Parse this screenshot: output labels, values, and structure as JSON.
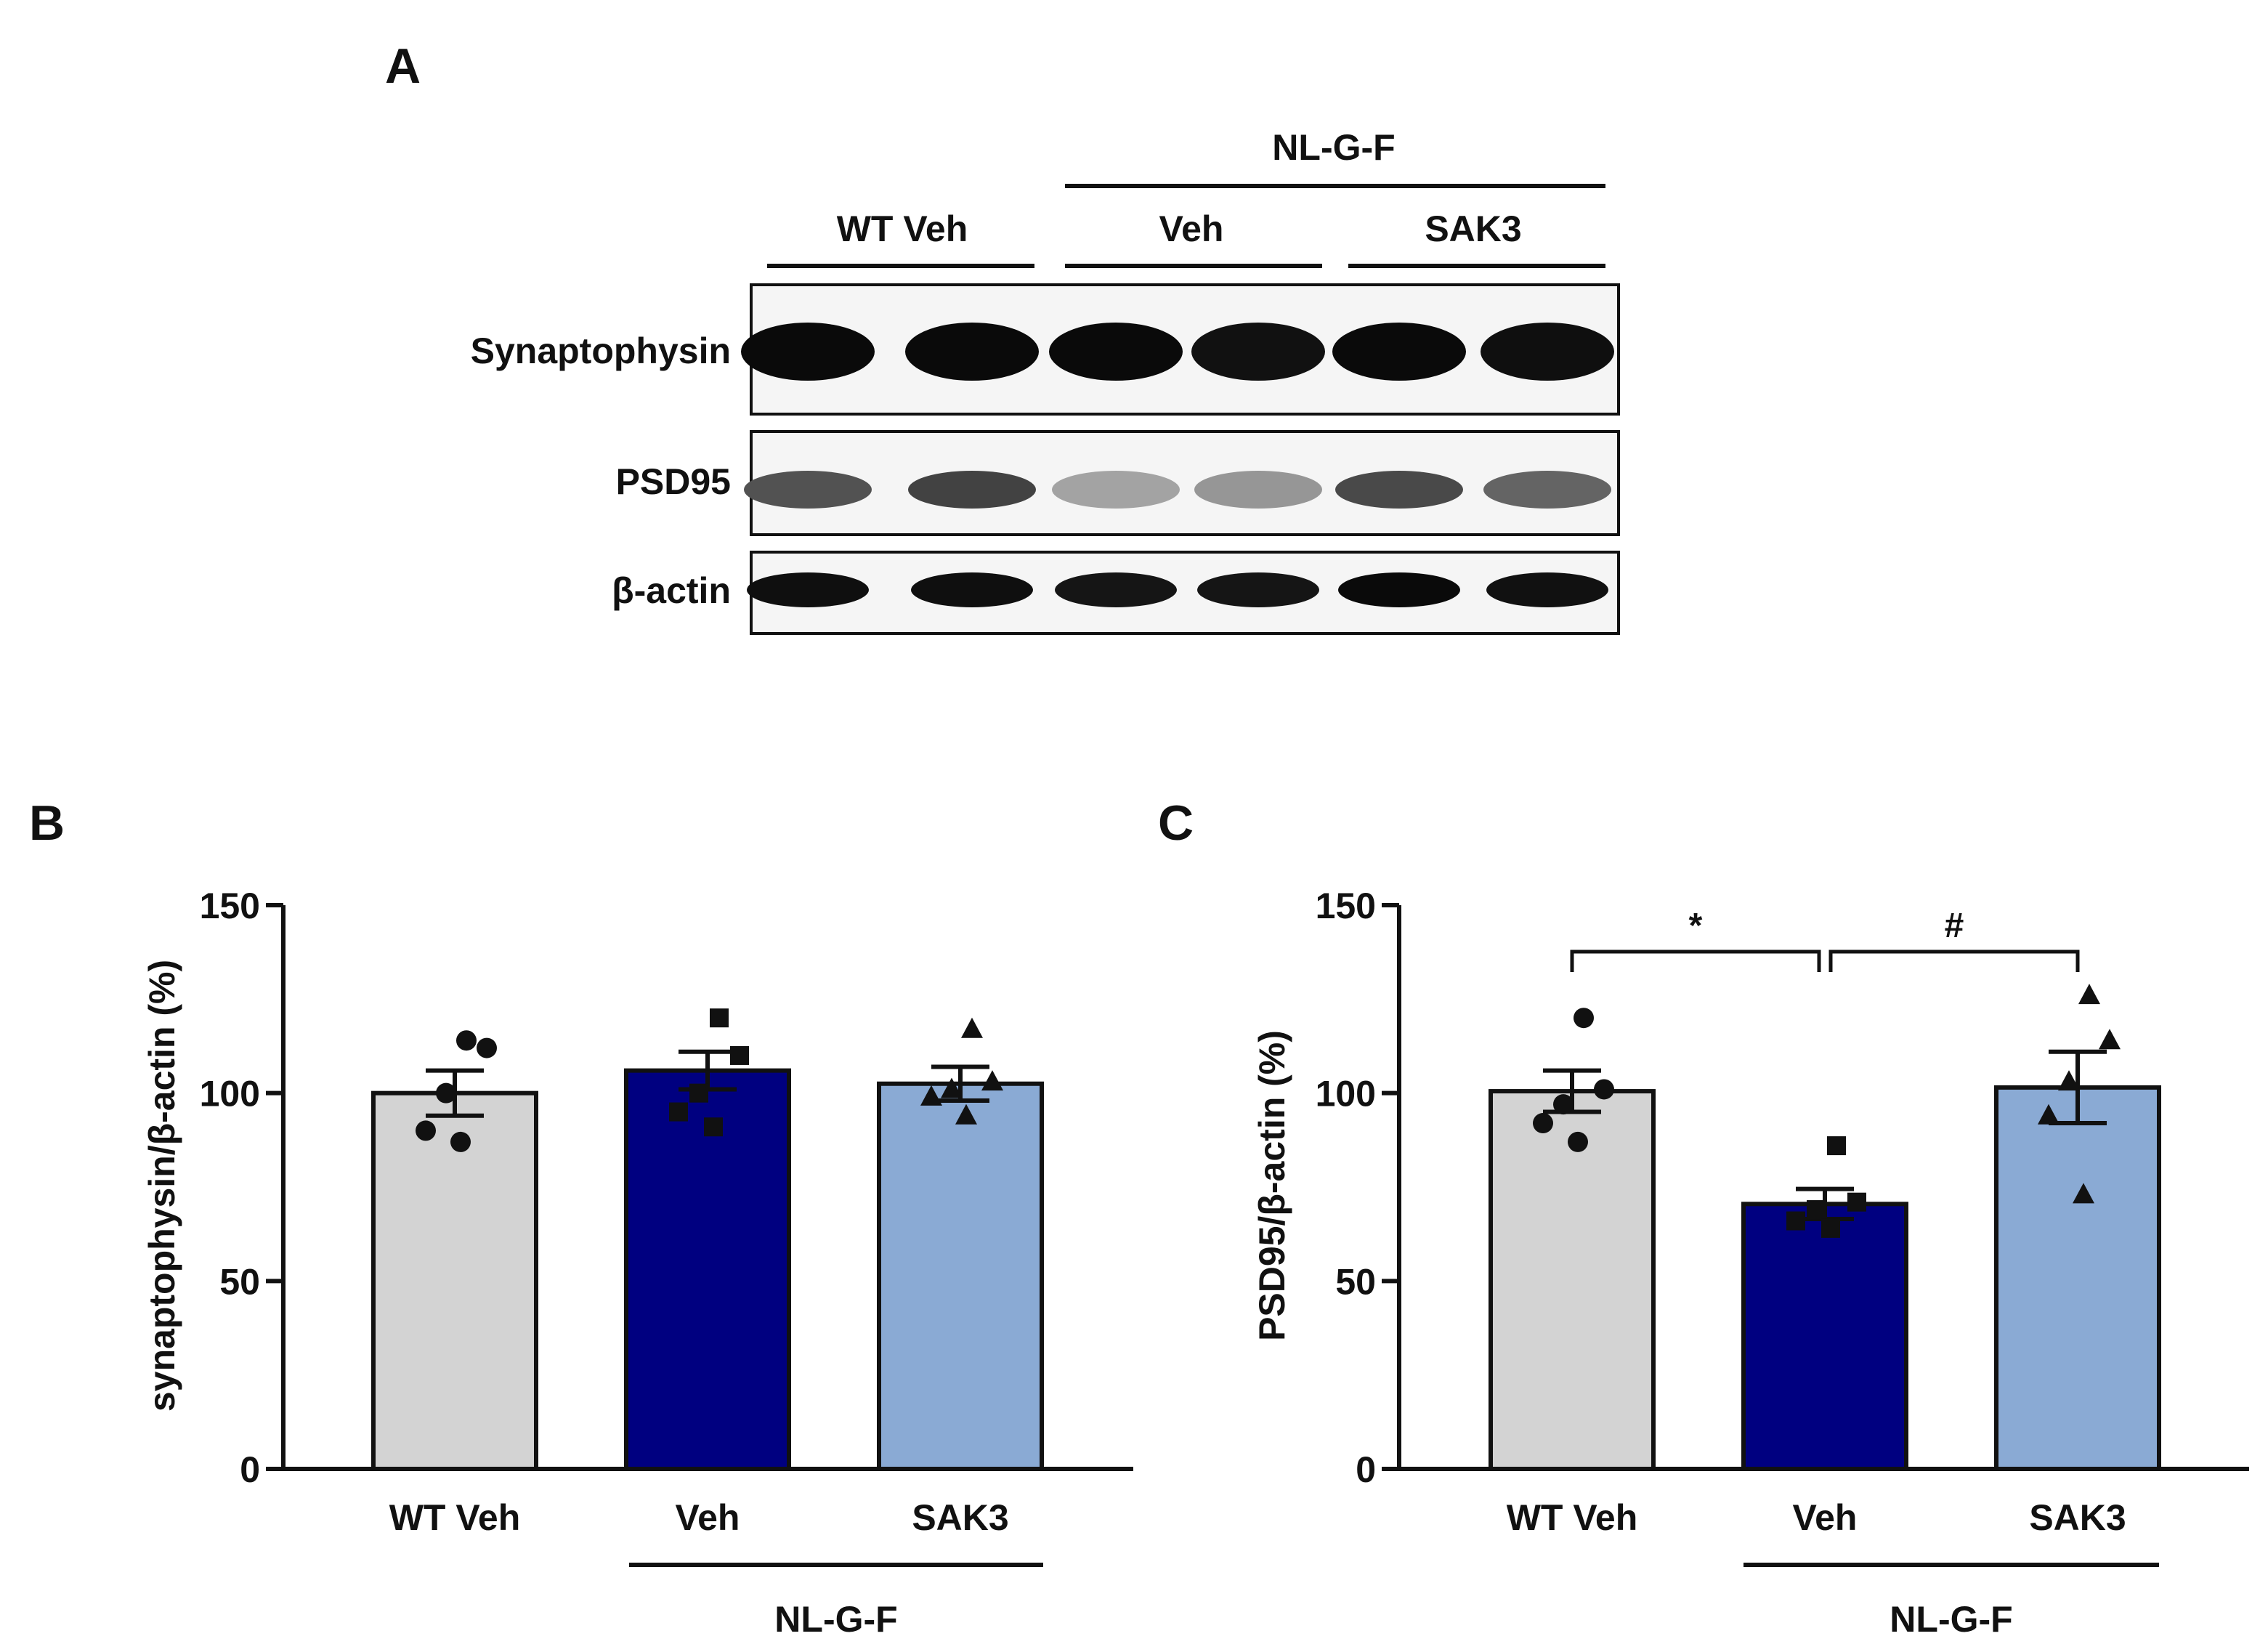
{
  "panel_a": {
    "label": "A",
    "group_top": "NL-G-F",
    "groups": [
      "WT Veh",
      "Veh",
      "SAK3"
    ],
    "blots": [
      {
        "label": "Synaptophysin",
        "intensities": [
          1.0,
          1.0,
          1.0,
          0.97,
          1.0,
          0.98
        ]
      },
      {
        "label": "PSD95",
        "intensities": [
          0.68,
          0.75,
          0.32,
          0.38,
          0.72,
          0.6
        ]
      },
      {
        "label": "β-actin",
        "intensities": [
          0.98,
          0.98,
          0.95,
          0.95,
          1.0,
          0.97
        ]
      }
    ]
  },
  "colors": {
    "wt_veh": "#d3d3d3",
    "veh": "#000080",
    "sak3": "#8aaad4",
    "ink": "#111111"
  },
  "chart_data": [
    {
      "type": "bar",
      "panel": "B",
      "categories": [
        "WT Veh",
        "Veh",
        "SAK3"
      ],
      "group_label": "NL-G-F",
      "values": [
        100,
        106,
        102.5
      ],
      "errors": [
        6,
        5,
        4.5
      ],
      "points": [
        [
          114,
          112,
          100,
          90,
          87
        ],
        [
          120,
          110,
          100,
          95,
          91
        ],
        [
          117,
          103,
          101,
          99,
          94
        ]
      ],
      "markers": [
        "circle",
        "square",
        "triangle"
      ],
      "xlabel": "",
      "ylabel": "synaptophysin/β-actin (%)",
      "ylim": [
        0,
        150
      ],
      "yticks": [
        0,
        50,
        100,
        150
      ],
      "significance": []
    },
    {
      "type": "bar",
      "panel": "C",
      "categories": [
        "WT Veh",
        "Veh",
        "SAK3"
      ],
      "group_label": "NL-G-F",
      "values": [
        100.5,
        70.5,
        101.5
      ],
      "errors": [
        5.5,
        4,
        9.5
      ],
      "points": [
        [
          120,
          101,
          97,
          92,
          87
        ],
        [
          86,
          71,
          69,
          66,
          64
        ],
        [
          126,
          114,
          103,
          94,
          73
        ]
      ],
      "markers": [
        "circle",
        "square",
        "triangle"
      ],
      "xlabel": "",
      "ylabel": "PSD95/β-actin (%)",
      "ylim": [
        0,
        150
      ],
      "yticks": [
        0,
        50,
        100,
        150
      ],
      "significance": [
        {
          "from": 0,
          "to": 1,
          "label": "*"
        },
        {
          "from": 1,
          "to": 2,
          "label": "#"
        }
      ]
    }
  ]
}
